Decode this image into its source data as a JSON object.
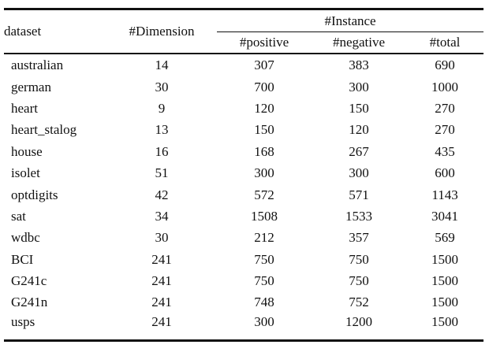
{
  "table": {
    "headers": {
      "dataset": "dataset",
      "dimension": "#Dimension",
      "instance_group": "#Instance",
      "positive": "#positive",
      "negative": "#negative",
      "total": "#total"
    },
    "rows": [
      [
        "australian",
        "14",
        "307",
        "383",
        "690"
      ],
      [
        "german",
        "30",
        "700",
        "300",
        "1000"
      ],
      [
        "heart",
        "9",
        "120",
        "150",
        "270"
      ],
      [
        "heart_stalog",
        "13",
        "150",
        "120",
        "270"
      ],
      [
        "house",
        "16",
        "168",
        "267",
        "435"
      ],
      [
        "isolet",
        "51",
        "300",
        "300",
        "600"
      ],
      [
        "optdigits",
        "42",
        "572",
        "571",
        "1143"
      ],
      [
        "sat",
        "34",
        "1508",
        "1533",
        "3041"
      ],
      [
        "wdbc",
        "30",
        "212",
        "357",
        "569"
      ],
      [
        "BCI",
        "241",
        "750",
        "750",
        "1500"
      ],
      [
        "G241c",
        "241",
        "750",
        "750",
        "1500"
      ],
      [
        "G241n",
        "241",
        "748",
        "752",
        "1500"
      ],
      [
        "usps",
        "241",
        "300",
        "1200",
        "1500"
      ]
    ]
  }
}
